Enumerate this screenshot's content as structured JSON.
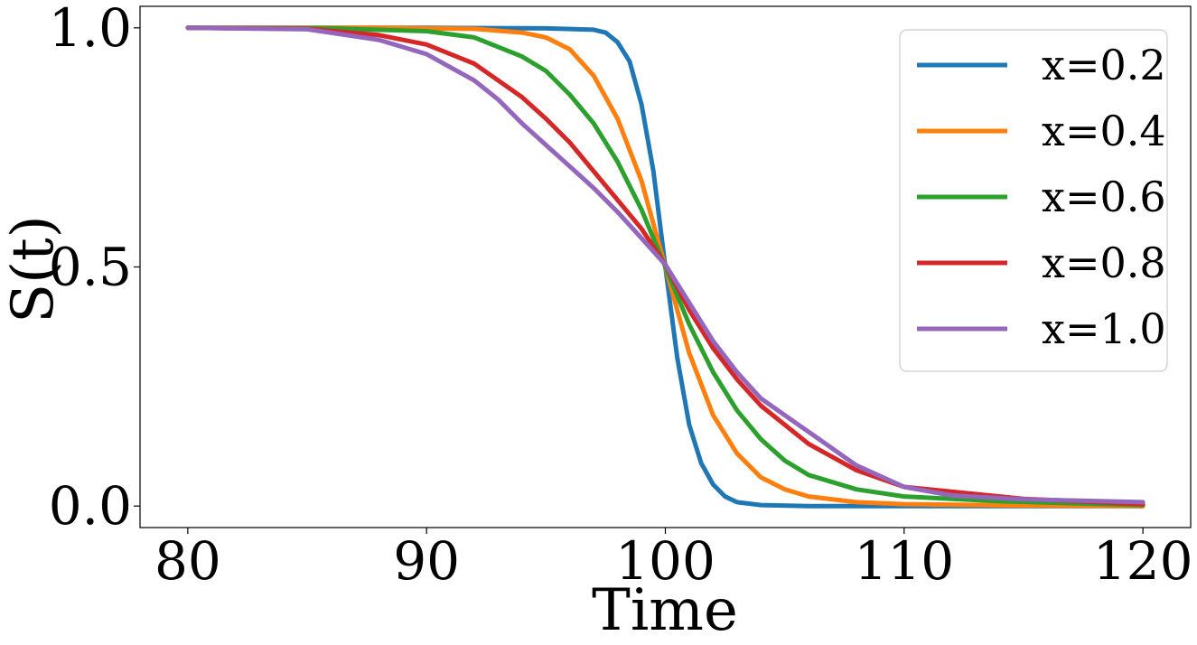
{
  "chart_data": {
    "type": "line",
    "title": "",
    "xlabel": "Time",
    "ylabel": "S(t)",
    "xlim": [
      78,
      122
    ],
    "ylim": [
      -0.045,
      1.045
    ],
    "xticks": [
      80,
      90,
      100,
      110,
      120
    ],
    "xtick_labels": [
      "80",
      "90",
      "100",
      "110",
      "120"
    ],
    "yticks": [
      0.0,
      0.5,
      1.0
    ],
    "ytick_labels": [
      "0.0",
      "0.5",
      "1.0"
    ],
    "grid": false,
    "legend_position": "top-right",
    "series": [
      {
        "name": "x=0.2",
        "color": "#1f77b4",
        "x": [
          80,
          90,
          95,
          97,
          97.5,
          98,
          98.5,
          99,
          99.5,
          100,
          100.5,
          101,
          101.5,
          102,
          102.5,
          103,
          104,
          106,
          110,
          120
        ],
        "y": [
          1.0,
          1.0,
          0.999,
          0.996,
          0.99,
          0.97,
          0.93,
          0.84,
          0.7,
          0.5,
          0.31,
          0.17,
          0.09,
          0.045,
          0.02,
          0.008,
          0.002,
          0.0,
          0.0,
          0.0
        ]
      },
      {
        "name": "x=0.4",
        "color": "#ff7f0e",
        "x": [
          80,
          88,
          92,
          94,
          95,
          96,
          97,
          98,
          99,
          100,
          101,
          102,
          103,
          104,
          105,
          106,
          108,
          110,
          115,
          120
        ],
        "y": [
          1.0,
          1.0,
          0.998,
          0.99,
          0.98,
          0.955,
          0.9,
          0.81,
          0.68,
          0.5,
          0.32,
          0.19,
          0.11,
          0.06,
          0.035,
          0.02,
          0.008,
          0.004,
          0.001,
          0.0
        ]
      },
      {
        "name": "x=0.6",
        "color": "#2ca02c",
        "x": [
          80,
          86,
          90,
          92,
          94,
          95,
          96,
          97,
          98,
          99,
          100,
          101,
          102,
          103,
          104,
          105,
          106,
          108,
          110,
          114,
          120
        ],
        "y": [
          1.0,
          0.999,
          0.993,
          0.98,
          0.94,
          0.91,
          0.86,
          0.8,
          0.72,
          0.62,
          0.5,
          0.38,
          0.28,
          0.2,
          0.14,
          0.095,
          0.065,
          0.035,
          0.02,
          0.01,
          0.002
        ]
      },
      {
        "name": "x=0.8",
        "color": "#d62728",
        "x": [
          80,
          85,
          88,
          90,
          92,
          94,
          95,
          96,
          97,
          98,
          99,
          100,
          101,
          102,
          103,
          104,
          106,
          108,
          110,
          115,
          120
        ],
        "y": [
          1.0,
          0.998,
          0.985,
          0.965,
          0.925,
          0.855,
          0.81,
          0.76,
          0.7,
          0.64,
          0.58,
          0.505,
          0.41,
          0.33,
          0.265,
          0.21,
          0.13,
          0.075,
          0.04,
          0.015,
          0.004
        ]
      },
      {
        "name": "x=1.0",
        "color": "#9467bd",
        "x": [
          80,
          85,
          88,
          90,
          92,
          93,
          94,
          95,
          96,
          97,
          98,
          99,
          100,
          101,
          102,
          103,
          104,
          106,
          108,
          110,
          112,
          115,
          120
        ],
        "y": [
          1.0,
          0.997,
          0.975,
          0.945,
          0.89,
          0.85,
          0.8,
          0.755,
          0.71,
          0.665,
          0.615,
          0.56,
          0.505,
          0.425,
          0.345,
          0.28,
          0.225,
          0.155,
          0.085,
          0.04,
          0.022,
          0.014,
          0.008
        ]
      }
    ]
  }
}
